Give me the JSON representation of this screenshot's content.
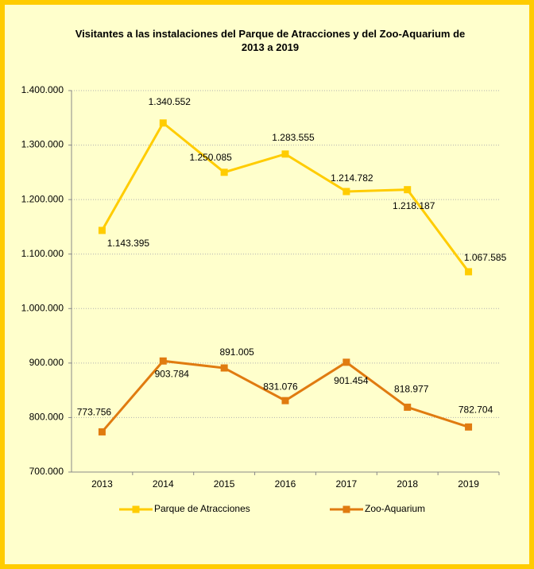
{
  "chart_data": {
    "type": "line",
    "title": "Visitantes a las instalaciones del  Parque de Atracciones y del Zoo-Aquarium de 2013 a 2019",
    "categories": [
      "2013",
      "2014",
      "2015",
      "2016",
      "2017",
      "2018",
      "2019"
    ],
    "series": [
      {
        "name": "Parque de Atracciones",
        "color": "#ffcc00",
        "values": [
          1143395,
          1340552,
          1250085,
          1283555,
          1214782,
          1218187,
          1067585
        ],
        "value_labels": [
          "1.143.395",
          "1.340.552",
          "1.250.085",
          "1.283.555",
          "1.214.782",
          "1.218.187",
          "1.067.585"
        ]
      },
      {
        "name": "Zoo-Aquarium",
        "color": "#e07b10",
        "values": [
          773756,
          903784,
          891005,
          831076,
          901454,
          818977,
          782704
        ],
        "value_labels": [
          "773.756",
          "903.784",
          "891.005",
          "831.076",
          "901.454",
          "818.977",
          "782.704"
        ]
      }
    ],
    "ylim": [
      700000,
      1400000
    ],
    "yticks": [
      {
        "value": 700000,
        "label": "700.000"
      },
      {
        "value": 800000,
        "label": "800.000"
      },
      {
        "value": 900000,
        "label": "900.000"
      },
      {
        "value": 1000000,
        "label": "1.000.000"
      },
      {
        "value": 1100000,
        "label": "1.100.000"
      },
      {
        "value": 1200000,
        "label": "1.200.000"
      },
      {
        "value": 1300000,
        "label": "1.300.000"
      },
      {
        "value": 1400000,
        "label": "1.400.000"
      }
    ],
    "grid": true,
    "legend": "bottom"
  }
}
